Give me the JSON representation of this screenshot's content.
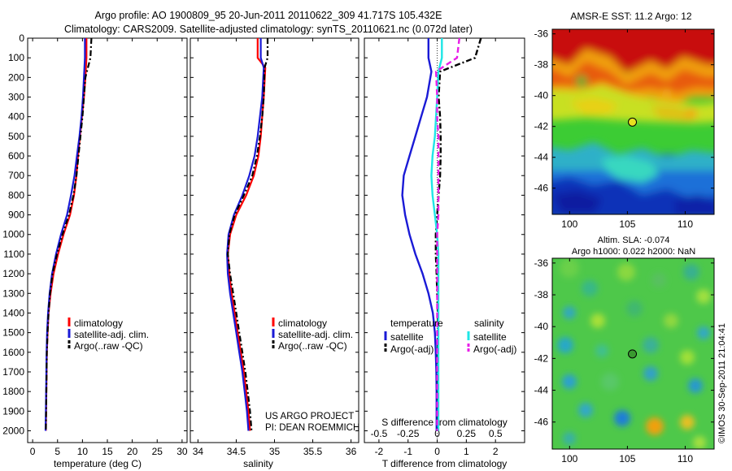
{
  "figure": {
    "title_line1": "Argo profile: AO 1900809_95 20-Jun-2011 20110622_309 41.717S 105.432E",
    "title_line2": "Climatology: CARS2009. Satellite-adjusted climatology: synTS_20110621.nc (0.072d later)",
    "project_line1": "US ARGO PROJECT",
    "project_line2": "PI: DEAN ROEMMICH",
    "credit": "©IMOS 30-Sep-2011 21:04:41"
  },
  "colors": {
    "climatology": "#ff0000",
    "satellite": "#1a1ad6",
    "argo": "#000000",
    "satellite_salinity": "#1ee6e6",
    "argo_salinity": "#e81ee8"
  },
  "chart_data": [
    {
      "type": "line",
      "panel": "temperature",
      "xlabel": "temperature (deg C)",
      "ylabel": "",
      "xlim": [
        -1,
        31
      ],
      "ylim": [
        2060,
        0
      ],
      "xticks": [
        0,
        5,
        10,
        15,
        20,
        25,
        30
      ],
      "yticks": [
        0,
        100,
        200,
        300,
        400,
        500,
        600,
        700,
        800,
        900,
        1000,
        1100,
        1200,
        1300,
        1400,
        1500,
        1600,
        1700,
        1800,
        1900,
        2000
      ],
      "legend": [
        "climatology",
        "satellite-adj. clim.",
        "Argo(..raw -QC)"
      ],
      "series": [
        {
          "name": "climatology",
          "style": "solid",
          "color": "#ff0000",
          "x": [
            10.8,
            10.8,
            10.6,
            10.3,
            9.9,
            9.5,
            9.1,
            8.8,
            8.3,
            7.5,
            6.2,
            5.1,
            4.2,
            3.6,
            3.2,
            3.0,
            2.85,
            2.8,
            2.75,
            2.7,
            2.65
          ],
          "y": [
            0,
            100,
            200,
            300,
            400,
            500,
            600,
            700,
            800,
            900,
            1000,
            1100,
            1200,
            1300,
            1400,
            1500,
            1600,
            1700,
            1800,
            1900,
            2000
          ]
        },
        {
          "name": "satellite-adj. clim.",
          "style": "solid",
          "color": "#1a1ad6",
          "x": [
            10.5,
            10.5,
            10.3,
            10.1,
            9.8,
            9.4,
            8.9,
            8.4,
            7.7,
            6.9,
            5.7,
            4.7,
            3.9,
            3.4,
            3.1,
            2.9,
            2.8,
            2.75,
            2.7,
            2.65,
            2.6
          ],
          "y": [
            0,
            100,
            200,
            300,
            400,
            500,
            600,
            700,
            800,
            900,
            1000,
            1100,
            1200,
            1300,
            1400,
            1500,
            1600,
            1700,
            1800,
            1900,
            2000
          ]
        },
        {
          "name": "Argo(..raw -QC)",
          "style": "dashdot",
          "color": "#000000",
          "x": [
            11.8,
            11.6,
            10.6,
            10.3,
            10.0,
            9.6,
            9.2,
            8.8,
            8.2,
            7.3,
            6.0,
            4.9,
            4.0,
            3.5,
            3.2,
            3.0,
            2.85,
            2.8,
            2.75,
            2.7,
            2.65
          ],
          "y": [
            0,
            100,
            200,
            300,
            400,
            500,
            600,
            700,
            800,
            900,
            1000,
            1100,
            1200,
            1300,
            1400,
            1500,
            1600,
            1700,
            1800,
            1900,
            2000
          ]
        }
      ]
    },
    {
      "type": "line",
      "panel": "salinity",
      "xlabel": "salinity",
      "xlim": [
        33.9,
        36.1
      ],
      "ylim": [
        2060,
        0
      ],
      "xticks": [
        34,
        34.5,
        35,
        35.5,
        36
      ],
      "legend": [
        "climatology",
        "satellite-adj. clim.",
        "Argo(..raw -QC)"
      ],
      "series": [
        {
          "name": "climatology",
          "style": "solid",
          "color": "#ff0000",
          "x": [
            34.78,
            34.78,
            34.88,
            34.86,
            34.84,
            34.82,
            34.79,
            34.73,
            34.63,
            34.5,
            34.42,
            34.39,
            34.41,
            34.44,
            34.48,
            34.52,
            34.56,
            34.6,
            34.63,
            34.66,
            34.68
          ],
          "y": [
            0,
            100,
            150,
            300,
            400,
            500,
            600,
            700,
            800,
            900,
            1000,
            1100,
            1200,
            1300,
            1400,
            1500,
            1600,
            1700,
            1800,
            1900,
            2000
          ]
        },
        {
          "name": "satellite-adj. clim.",
          "style": "solid",
          "color": "#1a1ad6",
          "x": [
            34.82,
            34.82,
            34.86,
            34.84,
            34.81,
            34.78,
            34.74,
            34.67,
            34.58,
            34.47,
            34.4,
            34.38,
            34.39,
            34.42,
            34.46,
            34.5,
            34.54,
            34.58,
            34.61,
            34.64,
            34.66
          ],
          "y": [
            0,
            100,
            150,
            300,
            400,
            500,
            600,
            700,
            800,
            900,
            1000,
            1100,
            1200,
            1300,
            1400,
            1500,
            1600,
            1700,
            1800,
            1900,
            2000
          ]
        },
        {
          "name": "Argo(..raw -QC)",
          "style": "dashdot",
          "color": "#000000",
          "x": [
            34.91,
            34.91,
            34.87,
            34.86,
            34.84,
            34.81,
            34.77,
            34.71,
            34.6,
            34.48,
            34.41,
            34.39,
            34.42,
            34.46,
            34.5,
            34.54,
            34.58,
            34.62,
            34.65,
            34.68,
            34.7
          ],
          "y": [
            0,
            100,
            150,
            300,
            400,
            500,
            600,
            700,
            800,
            900,
            1000,
            1100,
            1200,
            1300,
            1400,
            1500,
            1600,
            1700,
            1800,
            1900,
            2000
          ]
        }
      ]
    },
    {
      "type": "line",
      "panel": "difference",
      "xlabel_bottom": "T difference from climatology",
      "xlabel_top": "S difference from climatology",
      "xlim_T": [
        -2.5,
        3.0
      ],
      "xticks_T": [
        -2,
        -1,
        0,
        1,
        2
      ],
      "xticklabels_S": [
        "-0.5",
        "-0.25",
        "0",
        "0.25",
        "0.5"
      ],
      "ylim": [
        2060,
        0
      ],
      "legend_headers": [
        "temperature",
        "salinity"
      ],
      "legend": [
        "satellite",
        "Argo(-adj)",
        "satellite",
        "Argo(-adj)"
      ],
      "series": [
        {
          "name": "satellite",
          "group": "temperature",
          "style": "solid",
          "color": "#1a1ad6",
          "x": [
            -0.3,
            -0.3,
            -0.2,
            -0.35,
            -0.55,
            -0.75,
            -0.95,
            -1.15,
            -1.2,
            -1.1,
            -0.95,
            -0.75,
            -0.5,
            -0.3,
            -0.15,
            -0.08,
            -0.05,
            -0.03,
            -0.02,
            -0.02,
            -0.02
          ],
          "y": [
            0,
            100,
            170,
            300,
            400,
            500,
            600,
            700,
            800,
            900,
            1000,
            1100,
            1200,
            1300,
            1400,
            1500,
            1600,
            1700,
            1800,
            1900,
            2000
          ]
        },
        {
          "name": "Argo(-adj)",
          "group": "temperature",
          "style": "dashdot",
          "color": "#000000",
          "x": [
            1.5,
            1.3,
            0.1,
            0.05,
            0.1,
            0.12,
            0.12,
            0.1,
            0.05,
            0.0,
            -0.05,
            -0.05,
            -0.02,
            0.0,
            0.02,
            0.02,
            0.02,
            0.02,
            0.02,
            0.02,
            0.02
          ],
          "y": [
            0,
            100,
            170,
            300,
            400,
            500,
            600,
            700,
            800,
            900,
            1000,
            1100,
            1200,
            1300,
            1400,
            1500,
            1600,
            1700,
            1800,
            1900,
            2000
          ]
        },
        {
          "name": "satellite",
          "group": "salinity",
          "style": "solid",
          "color": "#1ee6e6",
          "s": [
            0.04,
            0.04,
            0.01,
            0.0,
            -0.01,
            -0.02,
            -0.04,
            -0.05,
            -0.04,
            -0.02,
            0.0,
            0.01,
            0.01,
            0.01,
            0.01,
            0.01,
            0.01,
            0.01,
            0.01,
            0.01,
            0.01
          ],
          "y": [
            0,
            100,
            170,
            300,
            400,
            500,
            600,
            700,
            800,
            900,
            1000,
            1100,
            1200,
            1300,
            1400,
            1500,
            1600,
            1700,
            1800,
            1900,
            2000
          ]
        },
        {
          "name": "Argo(-adj)",
          "group": "salinity",
          "style": "dashed",
          "color": "#e81ee8",
          "s": [
            0.19,
            0.17,
            -0.01,
            0.0,
            0.0,
            0.01,
            0.01,
            0.01,
            0.01,
            0.01,
            0.0,
            0.0,
            0.0,
            0.0,
            0.0,
            0.0,
            0.0,
            0.0,
            0.0,
            0.0,
            0.0
          ],
          "y": [
            0,
            100,
            170,
            300,
            400,
            500,
            600,
            700,
            800,
            900,
            1000,
            1100,
            1200,
            1300,
            1400,
            1500,
            1600,
            1700,
            1800,
            1900,
            2000
          ]
        }
      ]
    },
    {
      "type": "heatmap",
      "panel": "sst_map",
      "title": "AMSR-E SST: 11.2 Argo: 12",
      "xlim": [
        98.5,
        112.5
      ],
      "ylim": [
        -47.7,
        -35.7
      ],
      "xticks": [
        100,
        105,
        110
      ],
      "yticks": [
        -36,
        -38,
        -40,
        -42,
        -44,
        -46
      ],
      "marker": {
        "lon": 105.432,
        "lat": -41.717
      }
    },
    {
      "type": "heatmap",
      "panel": "sla_map",
      "title_line1": "Altim. SLA: -0.074",
      "title_line2": "Argo h1000: 0.022 h2000: NaN",
      "xlim": [
        98.5,
        112.5
      ],
      "ylim": [
        -47.7,
        -35.7
      ],
      "xticks": [
        100,
        105,
        110
      ],
      "yticks": [
        -36,
        -38,
        -40,
        -42,
        -44,
        -46
      ],
      "marker": {
        "lon": 105.432,
        "lat": -41.717
      }
    }
  ]
}
